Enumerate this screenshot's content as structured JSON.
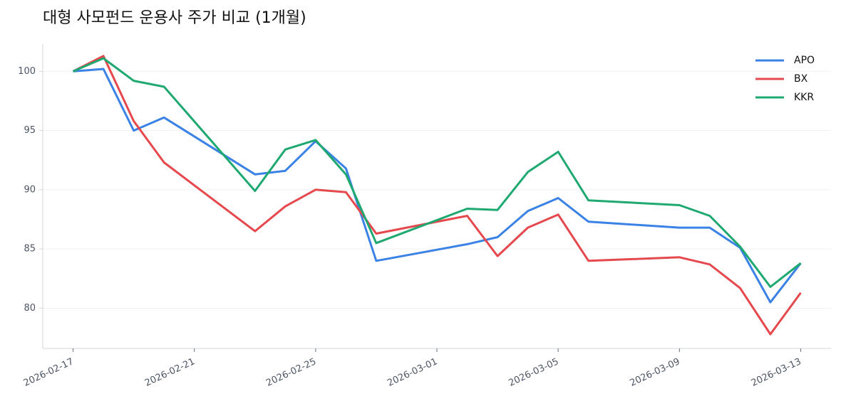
{
  "chart_data": {
    "type": "line",
    "title": "대형 사모펀드 운용사 주가 비교 (1개월)",
    "x": [
      "2026-02-17",
      "2026-02-18",
      "2026-02-19",
      "2026-02-20",
      "2026-02-23",
      "2026-02-24",
      "2026-02-25",
      "2026-02-26",
      "2026-02-27",
      "2026-03-02",
      "2026-03-03",
      "2026-03-04",
      "2026-03-05",
      "2026-03-06",
      "2026-03-09",
      "2026-03-10",
      "2026-03-11",
      "2026-03-12",
      "2026-03-13"
    ],
    "series": [
      {
        "name": "APO",
        "color": "#3b82e6",
        "values": [
          100,
          100.2,
          95.0,
          96.1,
          91.3,
          91.6,
          94.1,
          91.8,
          84.0,
          85.4,
          86.0,
          88.2,
          89.3,
          87.3,
          86.8,
          86.8,
          85.1,
          80.5,
          83.8
        ]
      },
      {
        "name": "BX",
        "color": "#e5484d",
        "values": [
          100,
          101.3,
          95.8,
          92.3,
          86.5,
          88.6,
          90.0,
          89.8,
          86.3,
          87.8,
          84.4,
          86.8,
          87.9,
          84.0,
          84.3,
          83.7,
          81.7,
          77.8,
          81.3
        ]
      },
      {
        "name": "KKR",
        "color": "#1fa971",
        "values": [
          100,
          101.1,
          99.2,
          98.7,
          89.9,
          93.4,
          94.2,
          91.3,
          85.5,
          88.4,
          88.3,
          91.5,
          93.2,
          89.1,
          88.7,
          87.8,
          85.2,
          81.8,
          83.8
        ]
      }
    ],
    "xlim": [
      "2026-02-16",
      "2026-03-14"
    ],
    "xticks": [
      "2026-02-17",
      "2026-02-21",
      "2026-02-25",
      "2026-03-01",
      "2026-03-05",
      "2026-03-09",
      "2026-03-13"
    ],
    "ylim": [
      76.6,
      102.3
    ],
    "yticks": [
      80,
      85,
      90,
      95,
      100
    ],
    "grid": true,
    "legend": "upper right"
  }
}
